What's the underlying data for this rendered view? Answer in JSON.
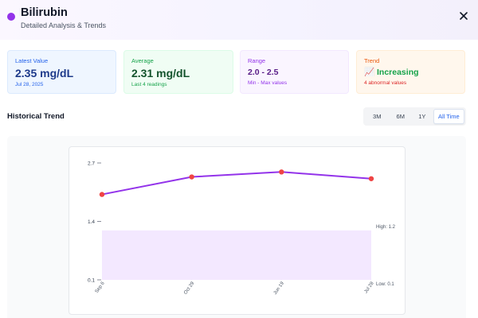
{
  "header": {
    "title": "Bilirubin",
    "subtitle": "Detailed Analysis & Trends",
    "accent_color": "#9333ea",
    "close_icon": "close-icon"
  },
  "cards": {
    "latest": {
      "label": "Latest Value",
      "value": "2.35 mg/dL",
      "note": "Jul 28, 2025"
    },
    "average": {
      "label": "Average",
      "value": "2.31 mg/dL",
      "note": "Last 4 readings"
    },
    "range": {
      "label": "Range",
      "value": "2.0 - 2.5",
      "note": "Min - Max values"
    },
    "trend": {
      "label": "Trend",
      "icon": "chart-increasing-icon",
      "icon_glyph": "📈",
      "value": "Increasing",
      "note": "4 abnormal values"
    }
  },
  "section": {
    "title": "Historical Trend"
  },
  "time_range": {
    "options": [
      "3M",
      "6M",
      "1Y",
      "All Time"
    ],
    "selected": "All Time"
  },
  "chart_data": {
    "type": "line",
    "x": [
      "Sep 6",
      "Oct 29",
      "Jun 19",
      "Jul 28"
    ],
    "values": [
      2.0,
      2.39,
      2.5,
      2.35
    ],
    "ylim": [
      0.1,
      2.7
    ],
    "yticks": [
      "2.7",
      "1.4",
      "0.1"
    ],
    "normal_range": {
      "low": 0.1,
      "high": 1.2,
      "low_label": "Low: 0.1",
      "high_label": "High: 1.2"
    },
    "line_color": "#9333ea",
    "point_color": "#ef4444",
    "band_color": "#f3e8ff",
    "grid": false
  }
}
